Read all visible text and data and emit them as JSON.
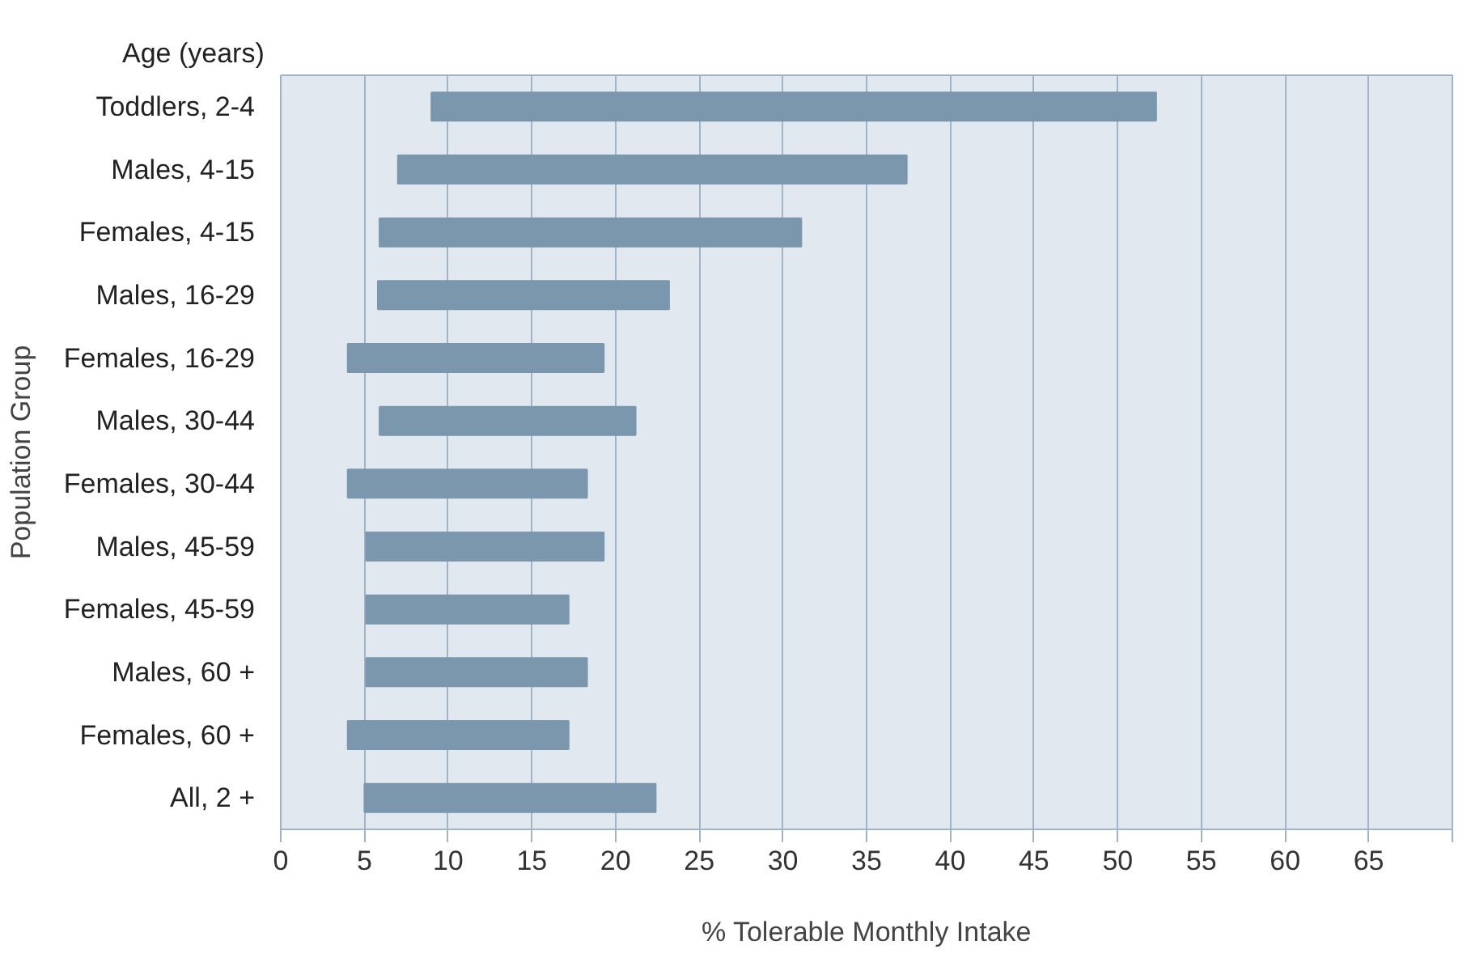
{
  "chart_data": {
    "type": "bar",
    "orientation": "horizontal",
    "categories": [
      "Toddlers, 2-4",
      "Males, 4-15",
      "Females, 4-15",
      "Males, 16-29",
      "Females, 16-29",
      "Males, 30-44",
      "Females, 30-44",
      "Males, 45-59",
      "Females, 45-59",
      "Males, 60 +",
      "Females, 60 +",
      "All, 2 +"
    ],
    "base": [
      9,
      7,
      5.9,
      5.8,
      4,
      5.9,
      4,
      5.1,
      5.1,
      5.1,
      4,
      5
    ],
    "values": [
      43.3,
      30.4,
      25.2,
      17.4,
      15.3,
      15.3,
      14.3,
      14.2,
      12.1,
      13.2,
      13.2,
      17.4
    ],
    "color": "#7a97ad",
    "xlim": [
      0,
      70
    ],
    "xticks": [
      0,
      5,
      10,
      15,
      20,
      25,
      30,
      35,
      40,
      45,
      50,
      55,
      60,
      65,
      {
        "value": 70,
        "label": null
      }
    ],
    "xlabel": "% Tolerable Monthly Intake",
    "ylabel": "Population Group",
    "annotations": [
      "Age (years)"
    ],
    "grid": "x"
  }
}
